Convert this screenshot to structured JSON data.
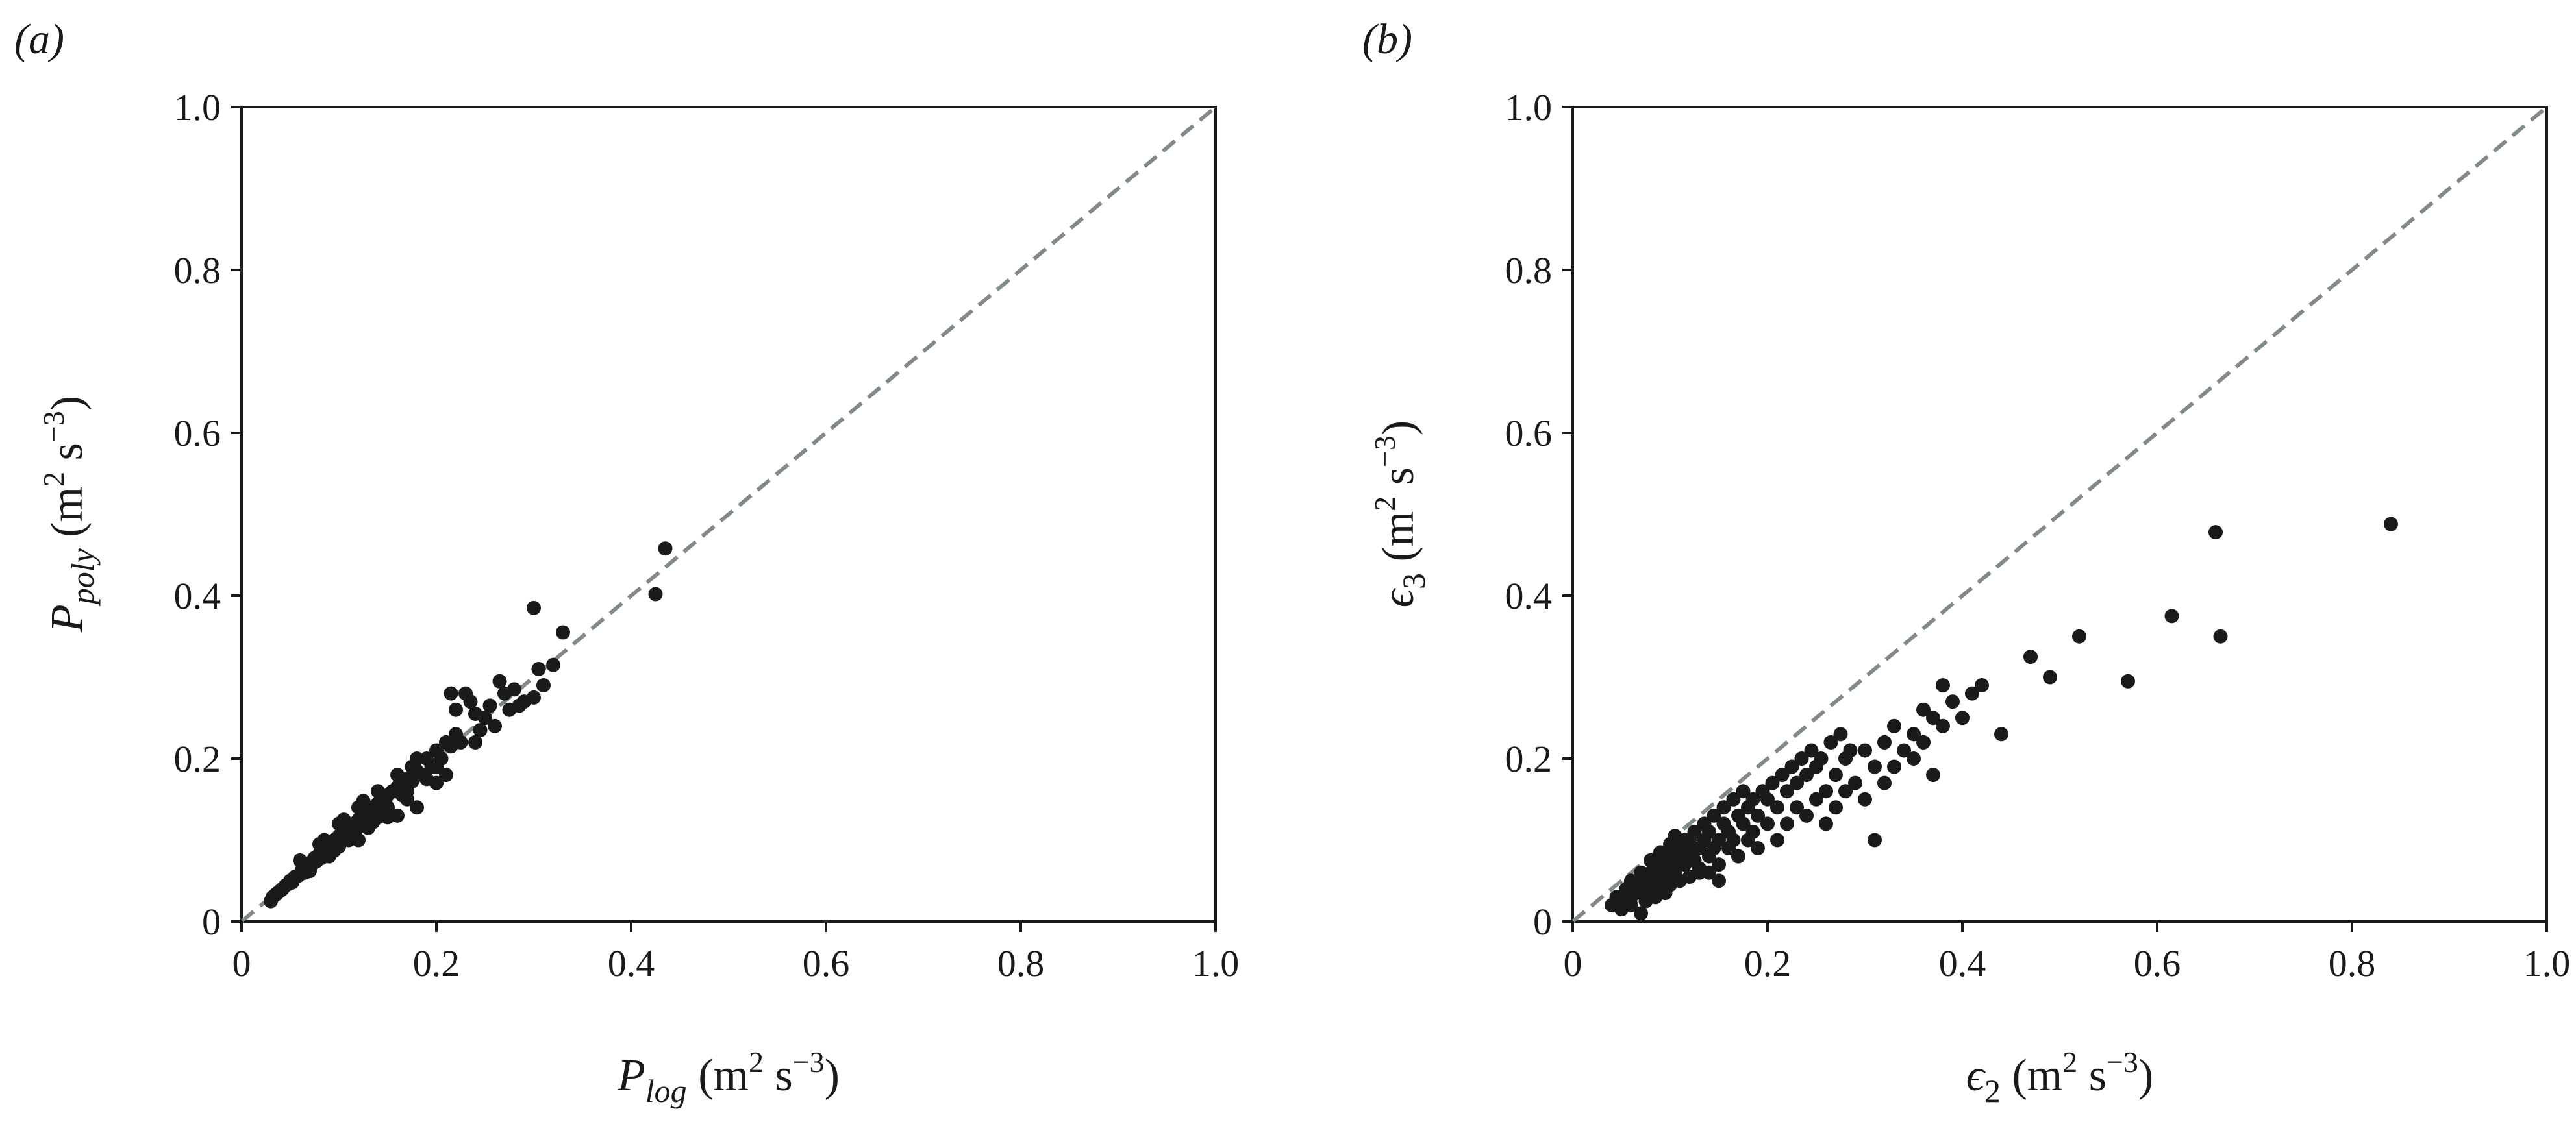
{
  "chart_data": [
    {
      "type": "scatter",
      "panel_label": "(a)",
      "xlabel": {
        "symbol": "P",
        "sub": "log",
        "unit_m": "m",
        "unit_m_exp": "2",
        "unit_s": "s",
        "unit_s_exp": "−3"
      },
      "ylabel": {
        "symbol": "P",
        "sub": "poly",
        "unit_m": "m",
        "unit_m_exp": "2",
        "unit_s": "s",
        "unit_s_exp": "−3"
      },
      "xlim": [
        0,
        1.0
      ],
      "ylim": [
        0,
        1.0
      ],
      "xticks": [
        0,
        0.2,
        0.4,
        0.6,
        0.8,
        1.0
      ],
      "xtick_labels": [
        "0",
        "0.2",
        "0.4",
        "0.6",
        "0.8",
        "1.0"
      ],
      "yticks": [
        0,
        0.2,
        0.4,
        0.6,
        0.8,
        1.0
      ],
      "ytick_labels": [
        "0",
        "0.2",
        "0.4",
        "0.6",
        "0.8",
        "1.0"
      ],
      "reference_line": "y = x (dashed grey)",
      "grid": false,
      "points": [
        [
          0.03,
          0.025
        ],
        [
          0.032,
          0.03
        ],
        [
          0.035,
          0.033
        ],
        [
          0.037,
          0.035
        ],
        [
          0.04,
          0.038
        ],
        [
          0.042,
          0.04
        ],
        [
          0.045,
          0.044
        ],
        [
          0.048,
          0.046
        ],
        [
          0.05,
          0.05
        ],
        [
          0.052,
          0.048
        ],
        [
          0.055,
          0.055
        ],
        [
          0.058,
          0.056
        ],
        [
          0.06,
          0.058
        ],
        [
          0.062,
          0.063
        ],
        [
          0.065,
          0.06
        ],
        [
          0.067,
          0.068
        ],
        [
          0.07,
          0.072
        ],
        [
          0.072,
          0.07
        ],
        [
          0.075,
          0.078
        ],
        [
          0.077,
          0.074
        ],
        [
          0.08,
          0.083
        ],
        [
          0.082,
          0.078
        ],
        [
          0.085,
          0.088
        ],
        [
          0.088,
          0.085
        ],
        [
          0.09,
          0.095
        ],
        [
          0.092,
          0.09
        ],
        [
          0.095,
          0.1
        ],
        [
          0.098,
          0.094
        ],
        [
          0.1,
          0.105
        ],
        [
          0.102,
          0.098
        ],
        [
          0.105,
          0.11
        ],
        [
          0.108,
          0.104
        ],
        [
          0.11,
          0.115
        ],
        [
          0.112,
          0.108
        ],
        [
          0.115,
          0.12
        ],
        [
          0.118,
          0.114
        ],
        [
          0.12,
          0.125
        ],
        [
          0.122,
          0.118
        ],
        [
          0.125,
          0.13
        ],
        [
          0.128,
          0.124
        ],
        [
          0.13,
          0.135
        ],
        [
          0.132,
          0.128
        ],
        [
          0.135,
          0.14
        ],
        [
          0.138,
          0.134
        ],
        [
          0.14,
          0.145
        ],
        [
          0.142,
          0.138
        ],
        [
          0.145,
          0.15
        ],
        [
          0.148,
          0.144
        ],
        [
          0.15,
          0.155
        ],
        [
          0.155,
          0.16
        ],
        [
          0.16,
          0.165
        ],
        [
          0.165,
          0.17
        ],
        [
          0.17,
          0.175
        ],
        [
          0.175,
          0.172
        ],
        [
          0.18,
          0.185
        ],
        [
          0.185,
          0.18
        ],
        [
          0.19,
          0.2
        ],
        [
          0.195,
          0.19
        ],
        [
          0.2,
          0.21
        ],
        [
          0.205,
          0.2
        ],
        [
          0.21,
          0.22
        ],
        [
          0.215,
          0.215
        ],
        [
          0.22,
          0.23
        ],
        [
          0.225,
          0.22
        ],
        [
          0.06,
          0.075
        ],
        [
          0.07,
          0.062
        ],
        [
          0.08,
          0.095
        ],
        [
          0.09,
          0.08
        ],
        [
          0.1,
          0.12
        ],
        [
          0.11,
          0.1
        ],
        [
          0.12,
          0.14
        ],
        [
          0.13,
          0.115
        ],
        [
          0.14,
          0.16
        ],
        [
          0.15,
          0.14
        ],
        [
          0.16,
          0.18
        ],
        [
          0.17,
          0.16
        ],
        [
          0.18,
          0.2
        ],
        [
          0.19,
          0.175
        ],
        [
          0.1,
          0.092
        ],
        [
          0.14,
          0.128
        ],
        [
          0.085,
          0.1
        ],
        [
          0.095,
          0.087
        ],
        [
          0.105,
          0.125
        ],
        [
          0.115,
          0.105
        ],
        [
          0.125,
          0.148
        ],
        [
          0.135,
          0.122
        ],
        [
          0.165,
          0.155
        ],
        [
          0.175,
          0.19
        ],
        [
          0.15,
          0.128
        ],
        [
          0.12,
          0.1
        ],
        [
          0.16,
          0.13
        ],
        [
          0.2,
          0.19
        ],
        [
          0.22,
          0.26
        ],
        [
          0.23,
          0.28
        ],
        [
          0.235,
          0.27
        ],
        [
          0.24,
          0.255
        ],
        [
          0.25,
          0.25
        ],
        [
          0.255,
          0.265
        ],
        [
          0.26,
          0.24
        ],
        [
          0.27,
          0.28
        ],
        [
          0.275,
          0.26
        ],
        [
          0.28,
          0.285
        ],
        [
          0.29,
          0.27
        ],
        [
          0.3,
          0.275
        ],
        [
          0.3,
          0.385
        ],
        [
          0.305,
          0.31
        ],
        [
          0.31,
          0.29
        ],
        [
          0.32,
          0.315
        ],
        [
          0.33,
          0.355
        ],
        [
          0.425,
          0.402
        ],
        [
          0.435,
          0.458
        ],
        [
          0.215,
          0.28
        ],
        [
          0.245,
          0.235
        ],
        [
          0.265,
          0.295
        ],
        [
          0.285,
          0.265
        ],
        [
          0.18,
          0.14
        ],
        [
          0.2,
          0.17
        ],
        [
          0.24,
          0.22
        ],
        [
          0.21,
          0.18
        ],
        [
          0.17,
          0.15
        ]
      ]
    },
    {
      "type": "scatter",
      "panel_label": "(b)",
      "xlabel": {
        "symbol": "ϵ",
        "sub": "2",
        "unit_m": "m",
        "unit_m_exp": "2",
        "unit_s": "s",
        "unit_s_exp": "−3"
      },
      "ylabel": {
        "symbol": "ϵ",
        "sub": "3",
        "unit_m": "m",
        "unit_m_exp": "2",
        "unit_s": "s",
        "unit_s_exp": "−3"
      },
      "xlim": [
        0,
        1.0
      ],
      "ylim": [
        0,
        1.0
      ],
      "xticks": [
        0,
        0.2,
        0.4,
        0.6,
        0.8,
        1.0
      ],
      "xtick_labels": [
        "0",
        "0.2",
        "0.4",
        "0.6",
        "0.8",
        "1.0"
      ],
      "yticks": [
        0,
        0.2,
        0.4,
        0.6,
        0.8,
        1.0
      ],
      "ytick_labels": [
        "0",
        "0.2",
        "0.4",
        "0.6",
        "0.8",
        "1.0"
      ],
      "reference_line": "y = x (dashed grey)",
      "grid": false,
      "points": [
        [
          0.04,
          0.02
        ],
        [
          0.045,
          0.03
        ],
        [
          0.05,
          0.025
        ],
        [
          0.055,
          0.04
        ],
        [
          0.06,
          0.03
        ],
        [
          0.065,
          0.045
        ],
        [
          0.07,
          0.035
        ],
        [
          0.07,
          0.01
        ],
        [
          0.075,
          0.05
        ],
        [
          0.08,
          0.04
        ],
        [
          0.08,
          0.06
        ],
        [
          0.085,
          0.045
        ],
        [
          0.09,
          0.055
        ],
        [
          0.09,
          0.07
        ],
        [
          0.095,
          0.05
        ],
        [
          0.1,
          0.065
        ],
        [
          0.1,
          0.08
        ],
        [
          0.105,
          0.06
        ],
        [
          0.11,
          0.075
        ],
        [
          0.11,
          0.09
        ],
        [
          0.115,
          0.07
        ],
        [
          0.12,
          0.085
        ],
        [
          0.12,
          0.1
        ],
        [
          0.125,
          0.075
        ],
        [
          0.13,
          0.09
        ],
        [
          0.13,
          0.06
        ],
        [
          0.135,
          0.1
        ],
        [
          0.14,
          0.08
        ],
        [
          0.14,
          0.11
        ],
        [
          0.145,
          0.09
        ],
        [
          0.15,
          0.1
        ],
        [
          0.15,
          0.07
        ],
        [
          0.155,
          0.12
        ],
        [
          0.16,
          0.09
        ],
        [
          0.16,
          0.11
        ],
        [
          0.165,
          0.1
        ],
        [
          0.17,
          0.13
        ],
        [
          0.17,
          0.08
        ],
        [
          0.175,
          0.12
        ],
        [
          0.18,
          0.1
        ],
        [
          0.18,
          0.14
        ],
        [
          0.185,
          0.11
        ],
        [
          0.19,
          0.13
        ],
        [
          0.19,
          0.09
        ],
        [
          0.2,
          0.15
        ],
        [
          0.2,
          0.12
        ],
        [
          0.21,
          0.14
        ],
        [
          0.21,
          0.1
        ],
        [
          0.22,
          0.16
        ],
        [
          0.22,
          0.12
        ],
        [
          0.23,
          0.17
        ],
        [
          0.23,
          0.14
        ],
        [
          0.24,
          0.13
        ],
        [
          0.24,
          0.18
        ],
        [
          0.25,
          0.15
        ],
        [
          0.25,
          0.19
        ],
        [
          0.26,
          0.16
        ],
        [
          0.26,
          0.12
        ],
        [
          0.27,
          0.18
        ],
        [
          0.27,
          0.14
        ],
        [
          0.28,
          0.2
        ],
        [
          0.28,
          0.16
        ],
        [
          0.29,
          0.17
        ],
        [
          0.3,
          0.15
        ],
        [
          0.3,
          0.21
        ],
        [
          0.31,
          0.1
        ],
        [
          0.31,
          0.19
        ],
        [
          0.32,
          0.22
        ],
        [
          0.32,
          0.17
        ],
        [
          0.33,
          0.24
        ],
        [
          0.33,
          0.19
        ],
        [
          0.34,
          0.21
        ],
        [
          0.35,
          0.23
        ],
        [
          0.35,
          0.2
        ],
        [
          0.36,
          0.26
        ],
        [
          0.36,
          0.22
        ],
        [
          0.37,
          0.25
        ],
        [
          0.37,
          0.18
        ],
        [
          0.38,
          0.29
        ],
        [
          0.38,
          0.24
        ],
        [
          0.39,
          0.27
        ],
        [
          0.4,
          0.25
        ],
        [
          0.41,
          0.28
        ],
        [
          0.42,
          0.29
        ],
        [
          0.44,
          0.23
        ],
        [
          0.47,
          0.325
        ],
        [
          0.49,
          0.3
        ],
        [
          0.52,
          0.35
        ],
        [
          0.57,
          0.295
        ],
        [
          0.615,
          0.375
        ],
        [
          0.66,
          0.478
        ],
        [
          0.665,
          0.35
        ],
        [
          0.84,
          0.488
        ],
        [
          0.05,
          0.015
        ],
        [
          0.06,
          0.02
        ],
        [
          0.075,
          0.025
        ],
        [
          0.085,
          0.03
        ],
        [
          0.095,
          0.035
        ],
        [
          0.1,
          0.045
        ],
        [
          0.11,
          0.05
        ],
        [
          0.12,
          0.055
        ],
        [
          0.13,
          0.065
        ],
        [
          0.14,
          0.06
        ],
        [
          0.15,
          0.05
        ],
        [
          0.06,
          0.05
        ],
        [
          0.07,
          0.06
        ],
        [
          0.08,
          0.075
        ],
        [
          0.09,
          0.085
        ],
        [
          0.1,
          0.095
        ],
        [
          0.105,
          0.105
        ],
        [
          0.115,
          0.1
        ],
        [
          0.125,
          0.11
        ],
        [
          0.135,
          0.12
        ],
        [
          0.145,
          0.13
        ],
        [
          0.155,
          0.14
        ],
        [
          0.165,
          0.15
        ],
        [
          0.175,
          0.16
        ],
        [
          0.185,
          0.15
        ],
        [
          0.195,
          0.16
        ],
        [
          0.205,
          0.17
        ],
        [
          0.215,
          0.18
        ],
        [
          0.225,
          0.19
        ],
        [
          0.235,
          0.2
        ],
        [
          0.245,
          0.21
        ],
        [
          0.255,
          0.2
        ],
        [
          0.265,
          0.22
        ],
        [
          0.275,
          0.23
        ],
        [
          0.285,
          0.21
        ]
      ]
    }
  ]
}
